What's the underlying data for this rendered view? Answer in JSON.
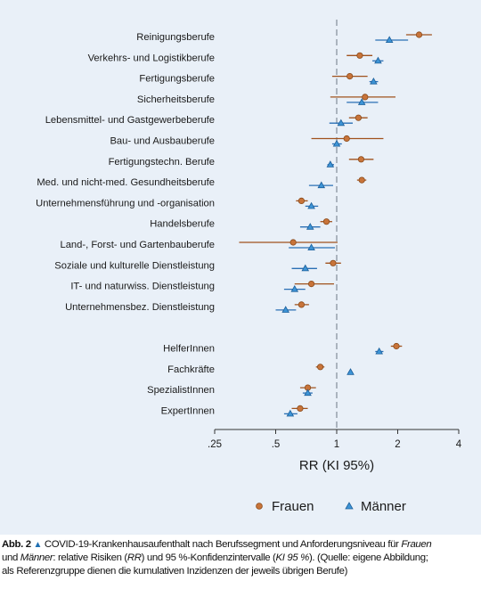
{
  "chart_data": {
    "type": "forest",
    "xlabel": "RR (KI 95%)",
    "xscale": "log",
    "xlim": [
      0.25,
      4
    ],
    "xticks": [
      {
        "value": 0.25,
        "label": ".25"
      },
      {
        "value": 0.5,
        "label": ".5"
      },
      {
        "value": 1,
        "label": "1"
      },
      {
        "value": 2,
        "label": "2"
      },
      {
        "value": 4,
        "label": "4"
      }
    ],
    "reference_line": 1,
    "grid": false,
    "legend_position": "bottom",
    "series": [
      {
        "name": "Frauen",
        "marker": "circle",
        "color": "#c8743a",
        "edge": "#8a4a1a",
        "ci_color": "#a0521d"
      },
      {
        "name": "Männer",
        "marker": "triangle",
        "color": "#3d94d6",
        "edge": "#1d5f9a",
        "ci_color": "#2a6fb5"
      }
    ],
    "groups": [
      {
        "categories": [
          {
            "label": "Reinigungsberufe",
            "frauen": {
              "rr": 2.55,
              "lo": 2.2,
              "hi": 2.95
            },
            "maenner": {
              "rr": 1.82,
              "lo": 1.55,
              "hi": 2.25
            }
          },
          {
            "label": "Verkehrs- und Logistikberufe",
            "frauen": {
              "rr": 1.3,
              "lo": 1.12,
              "hi": 1.5
            },
            "maenner": {
              "rr": 1.6,
              "lo": 1.5,
              "hi": 1.7
            }
          },
          {
            "label": "Fertigungsberufe",
            "frauen": {
              "rr": 1.16,
              "lo": 0.95,
              "hi": 1.42
            },
            "maenner": {
              "rr": 1.52,
              "lo": 1.45,
              "hi": 1.6
            }
          },
          {
            "label": "Sicherheitsberufe",
            "frauen": {
              "rr": 1.38,
              "lo": 0.93,
              "hi": 1.95
            },
            "maenner": {
              "rr": 1.33,
              "lo": 1.12,
              "hi": 1.6
            }
          },
          {
            "label": "Lebensmittel- und Gastgewerbeberufe",
            "frauen": {
              "rr": 1.28,
              "lo": 1.15,
              "hi": 1.42
            },
            "maenner": {
              "rr": 1.05,
              "lo": 0.92,
              "hi": 1.2
            }
          },
          {
            "label": "Bau- und Ausbauberufe",
            "frauen": {
              "rr": 1.12,
              "lo": 0.75,
              "hi": 1.7
            },
            "maenner": {
              "rr": 1.0,
              "lo": 0.95,
              "hi": 1.06
            }
          },
          {
            "label": "Fertigungstechn. Berufe",
            "frauen": {
              "rr": 1.32,
              "lo": 1.15,
              "hi": 1.52
            },
            "maenner": {
              "rr": 0.93,
              "lo": 0.9,
              "hi": 0.97
            }
          },
          {
            "label": "Med. und nicht-med. Gesundheitsberufe",
            "frauen": {
              "rr": 1.33,
              "lo": 1.26,
              "hi": 1.4
            },
            "maenner": {
              "rr": 0.84,
              "lo": 0.73,
              "hi": 0.96
            }
          },
          {
            "label": "Unternehmensführung und -organisation",
            "frauen": {
              "rr": 0.67,
              "lo": 0.63,
              "hi": 0.72
            },
            "maenner": {
              "rr": 0.75,
              "lo": 0.7,
              "hi": 0.81
            }
          },
          {
            "label": "Handelsberufe",
            "frauen": {
              "rr": 0.89,
              "lo": 0.83,
              "hi": 0.95
            },
            "maenner": {
              "rr": 0.74,
              "lo": 0.66,
              "hi": 0.83
            }
          },
          {
            "label": "Land-, Forst- und Gartenbauberufe",
            "frauen": {
              "rr": 0.61,
              "lo": 0.33,
              "hi": 1.01
            },
            "maenner": {
              "rr": 0.75,
              "lo": 0.58,
              "hi": 0.98
            }
          },
          {
            "label": "Soziale und kulturelle Dienstleistung",
            "frauen": {
              "rr": 0.96,
              "lo": 0.88,
              "hi": 1.05
            },
            "maenner": {
              "rr": 0.7,
              "lo": 0.6,
              "hi": 0.8
            }
          },
          {
            "label": "IT- und naturwiss. Dienstleistung",
            "frauen": {
              "rr": 0.75,
              "lo": 0.62,
              "hi": 0.97
            },
            "maenner": {
              "rr": 0.62,
              "lo": 0.55,
              "hi": 0.7
            }
          },
          {
            "label": "Unternehmensbez. Dienstleistung",
            "frauen": {
              "rr": 0.67,
              "lo": 0.62,
              "hi": 0.73
            },
            "maenner": {
              "rr": 0.56,
              "lo": 0.5,
              "hi": 0.63
            }
          }
        ]
      },
      {
        "categories": [
          {
            "label": "HelferInnen",
            "frauen": {
              "rr": 1.97,
              "lo": 1.85,
              "hi": 2.1
            },
            "maenner": {
              "rr": 1.62,
              "lo": 1.55,
              "hi": 1.7
            }
          },
          {
            "label": "Fachkräfte",
            "frauen": {
              "rr": 0.83,
              "lo": 0.79,
              "hi": 0.87
            },
            "maenner": {
              "rr": 1.17,
              "lo": 1.14,
              "hi": 1.2
            }
          },
          {
            "label": "SpezialistInnen",
            "frauen": {
              "rr": 0.72,
              "lo": 0.66,
              "hi": 0.79
            },
            "maenner": {
              "rr": 0.72,
              "lo": 0.68,
              "hi": 0.76
            }
          },
          {
            "label": "ExpertInnen",
            "frauen": {
              "rr": 0.66,
              "lo": 0.6,
              "hi": 0.72
            },
            "maenner": {
              "rr": 0.59,
              "lo": 0.55,
              "hi": 0.64
            }
          }
        ]
      }
    ]
  },
  "caption": {
    "label": "Abb. 2",
    "triangle": "▲",
    "line1_a": " COVID-19-Krankenhausaufenthalt nach Berufssegment und Anforderungsniveau für ",
    "line1_em": "Frauen",
    "line2_a": "und ",
    "line2_em1": "Männer",
    "line2_b": ": relative Risiken (",
    "line2_em2": "RR",
    "line2_c": ") und 95 %-Konfidenzintervalle (",
    "line2_em3": "KI 95 %",
    "line2_d": "). (Quelle: eigene Abbildung;",
    "line3": "als Referenzgruppe dienen die kumulativen Inzidenzen der jeweils übrigen Berufe)"
  }
}
